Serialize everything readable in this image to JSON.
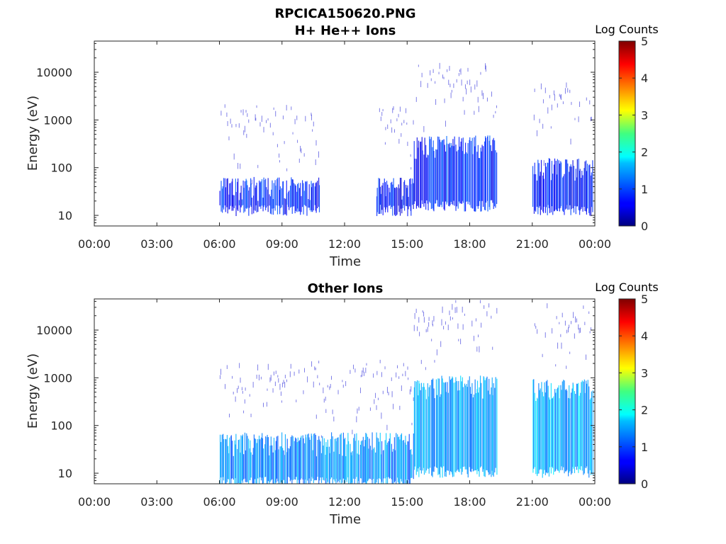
{
  "title": "RPCICA150620.PNG",
  "chart_data": [
    {
      "type": "heatmap",
      "title": "H+ He++ Ions",
      "xlabel": "Time",
      "ylabel": "Energy (eV)",
      "xticks": [
        "00:00",
        "03:00",
        "06:00",
        "09:00",
        "12:00",
        "15:00",
        "18:00",
        "21:00",
        "00:00"
      ],
      "xlim_hours": [
        0,
        24
      ],
      "yscale": "log",
      "yticks": [
        "10",
        "100",
        "1000",
        "10000"
      ],
      "ylim": [
        6,
        45000
      ],
      "colorbar": {
        "label": "Log Counts",
        "ticks": [
          "0",
          "1",
          "2",
          "3",
          "4",
          "5"
        ],
        "range": [
          0,
          5
        ],
        "colormap": "jet"
      },
      "data_gaps_hours": [
        [
          0,
          6.0
        ],
        [
          19.3,
          20.9
        ]
      ],
      "activity": [
        {
          "from_hour": 6.0,
          "to_hour": 10.8,
          "energy_low": 12,
          "energy_high": 40,
          "log_counts": 0.8
        },
        {
          "from_hour": 13.5,
          "to_hour": 15.3,
          "energy_low": 12,
          "energy_high": 40,
          "log_counts": 0.7
        },
        {
          "from_hour": 15.3,
          "to_hour": 19.3,
          "energy_low": 15,
          "energy_high": 300,
          "log_counts": 0.8
        },
        {
          "from_hour": 21.0,
          "to_hour": 23.9,
          "energy_low": 12,
          "energy_high": 100,
          "log_counts": 0.7
        }
      ]
    },
    {
      "type": "heatmap",
      "title": "Other Ions",
      "xlabel": "Time",
      "ylabel": "Energy (eV)",
      "xticks": [
        "00:00",
        "03:00",
        "06:00",
        "09:00",
        "12:00",
        "15:00",
        "18:00",
        "21:00",
        "00:00"
      ],
      "xlim_hours": [
        0,
        24
      ],
      "yscale": "log",
      "yticks": [
        "10",
        "100",
        "1000",
        "10000"
      ],
      "ylim": [
        6,
        45000
      ],
      "colorbar": {
        "label": "Log Counts",
        "ticks": [
          "0",
          "1",
          "2",
          "3",
          "4",
          "5"
        ],
        "range": [
          0,
          5
        ],
        "colormap": "jet"
      },
      "data_gaps_hours": [
        [
          0,
          6.0
        ],
        [
          19.3,
          20.9
        ]
      ],
      "activity": [
        {
          "from_hour": 6.0,
          "to_hour": 15.3,
          "energy_low": 6,
          "energy_high": 45,
          "log_counts": 1.3
        },
        {
          "from_hour": 15.3,
          "to_hour": 19.3,
          "energy_low": 10,
          "energy_high": 700,
          "log_counts": 1.4
        },
        {
          "from_hour": 21.0,
          "to_hour": 23.9,
          "energy_low": 10,
          "energy_high": 600,
          "log_counts": 1.5
        }
      ]
    }
  ]
}
